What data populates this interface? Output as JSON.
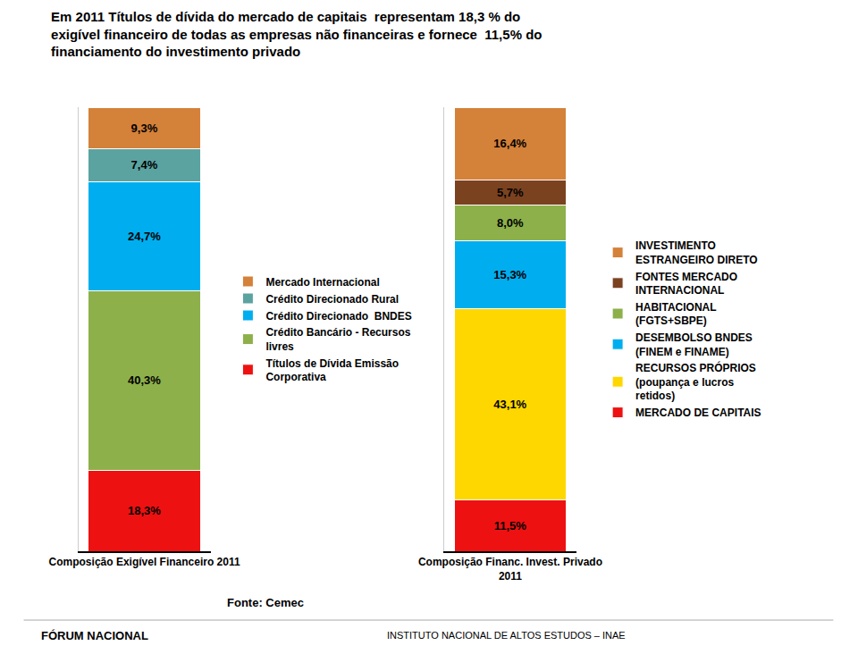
{
  "chart_data": [
    {
      "type": "bar",
      "title": "Em 2011 Títulos de dívida do mercado de capitais  representam 18,3 % do\nexigível financeiro de todas as empresas não financeiras e fornece  11,5% do\nfinanciamento do investimento privado",
      "annotations": [
        "Fonte: Cemec",
        "FÓRUM NACIONAL",
        "INSTITUTO NACIONAL DE ALTOS ESTUDOS – INAE"
      ],
      "categories": [
        "Composição Exigível Financeiro 2011"
      ],
      "stacked": true,
      "data_labels": true,
      "tick_labels": "x",
      "legend": "right",
      "ylim": [
        0,
        100
      ],
      "series": [
        {
          "name": "Títulos de Dívida Emissão\nCorporativa",
          "color": "#EE1111",
          "values": [
            18.3
          ],
          "value_labels": [
            "18,3%"
          ]
        },
        {
          "name": "Crédito Bancário - Recursos\nlivres",
          "color": "#8DB04A",
          "values": [
            40.3
          ],
          "value_labels": [
            "40,3%"
          ]
        },
        {
          "name": "Crédito Direcionado  BNDES",
          "color": "#00AEEF",
          "values": [
            24.7
          ],
          "value_labels": [
            "24,7%"
          ]
        },
        {
          "name": "Crédito Direcionado Rural",
          "color": "#5BA3A0",
          "values": [
            7.4
          ],
          "value_labels": [
            "7,4%"
          ]
        },
        {
          "name": "Mercado Internacional",
          "color": "#D4813A",
          "values": [
            9.3
          ],
          "value_labels": [
            "9,3%"
          ]
        }
      ]
    },
    {
      "type": "bar",
      "categories": [
        "Composição Financ. Invest. Privado\n2011"
      ],
      "stacked": true,
      "data_labels": true,
      "tick_labels": "x",
      "legend": "right",
      "ylim": [
        0,
        100
      ],
      "series": [
        {
          "name": "MERCADO DE CAPITAIS",
          "color": "#EE1111",
          "values": [
            11.5
          ],
          "value_labels": [
            "11,5%"
          ]
        },
        {
          "name": "RECURSOS PRÓPRIOS\n(poupança e lucros\nretidos)",
          "color": "#FFD700",
          "values": [
            43.1
          ],
          "value_labels": [
            "43,1%"
          ]
        },
        {
          "name": "DESEMBOLSO BNDES\n(FINEM e FINAME)",
          "color": "#00AEEF",
          "values": [
            15.3
          ],
          "value_labels": [
            "15,3%"
          ]
        },
        {
          "name": "HABITACIONAL\n(FGTS+SBPE)",
          "color": "#8DB04A",
          "values": [
            8.0
          ],
          "value_labels": [
            "8,0%"
          ]
        },
        {
          "name": "FONTES MERCADO\nINTERNACIONAL",
          "color": "#7B4220",
          "values": [
            5.7
          ],
          "value_labels": [
            "5,7%"
          ]
        },
        {
          "name": "INVESTIMENTO\nESTRANGEIRO DIRETO",
          "color": "#D4813A",
          "values": [
            16.4
          ],
          "value_labels": [
            "16,4%"
          ]
        }
      ]
    }
  ]
}
